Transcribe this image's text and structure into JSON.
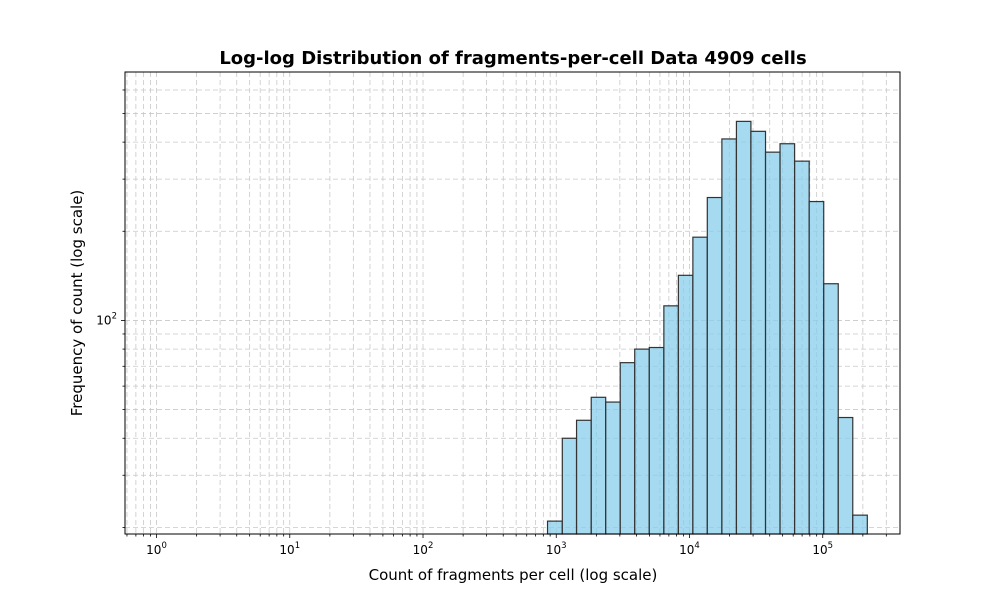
{
  "chart_data": {
    "type": "bar",
    "title": "Log-log Distribution of fragments-per-cell Data 4909 cells",
    "xlabel": "Count of fragments per cell (log scale)",
    "ylabel": "Frequency of count (log scale)",
    "x_scale": "log",
    "y_scale": "log",
    "xlim": [
      0.58,
      380000
    ],
    "ylim": [
      19,
      690
    ],
    "grid": true,
    "x_ticks": [
      {
        "base": "10",
        "exp": "0",
        "value": 1
      },
      {
        "base": "10",
        "exp": "1",
        "value": 10
      },
      {
        "base": "10",
        "exp": "2",
        "value": 100
      },
      {
        "base": "10",
        "exp": "3",
        "value": 1000
      },
      {
        "base": "10",
        "exp": "4",
        "value": 10000
      },
      {
        "base": "10",
        "exp": "5",
        "value": 100000
      }
    ],
    "y_ticks": [
      {
        "base": "10",
        "exp": "2",
        "value": 100
      }
    ],
    "bar_color": "#87CEEB",
    "edge_color": "#333333",
    "bins": [
      {
        "left": 860,
        "right": 1110,
        "count": 21
      },
      {
        "left": 1110,
        "right": 1420,
        "count": 40
      },
      {
        "left": 1420,
        "right": 1830,
        "count": 46
      },
      {
        "left": 1830,
        "right": 2350,
        "count": 55
      },
      {
        "left": 2350,
        "right": 3020,
        "count": 53
      },
      {
        "left": 3020,
        "right": 3880,
        "count": 72
      },
      {
        "left": 3880,
        "right": 4990,
        "count": 80
      },
      {
        "left": 4990,
        "right": 6420,
        "count": 81
      },
      {
        "left": 6420,
        "right": 8250,
        "count": 112
      },
      {
        "left": 8250,
        "right": 10600,
        "count": 142
      },
      {
        "left": 10600,
        "right": 13600,
        "count": 191
      },
      {
        "left": 13600,
        "right": 17500,
        "count": 260
      },
      {
        "left": 17500,
        "right": 22500,
        "count": 410
      },
      {
        "left": 22500,
        "right": 28900,
        "count": 470
      },
      {
        "left": 28900,
        "right": 37200,
        "count": 435
      },
      {
        "left": 37200,
        "right": 47800,
        "count": 370
      },
      {
        "left": 47800,
        "right": 61500,
        "count": 395
      },
      {
        "left": 61500,
        "right": 79100,
        "count": 345
      },
      {
        "left": 79100,
        "right": 101700,
        "count": 252
      },
      {
        "left": 101700,
        "right": 130700,
        "count": 133
      },
      {
        "left": 130700,
        "right": 168000,
        "count": 47
      },
      {
        "left": 168000,
        "right": 216000,
        "count": 22
      }
    ]
  }
}
